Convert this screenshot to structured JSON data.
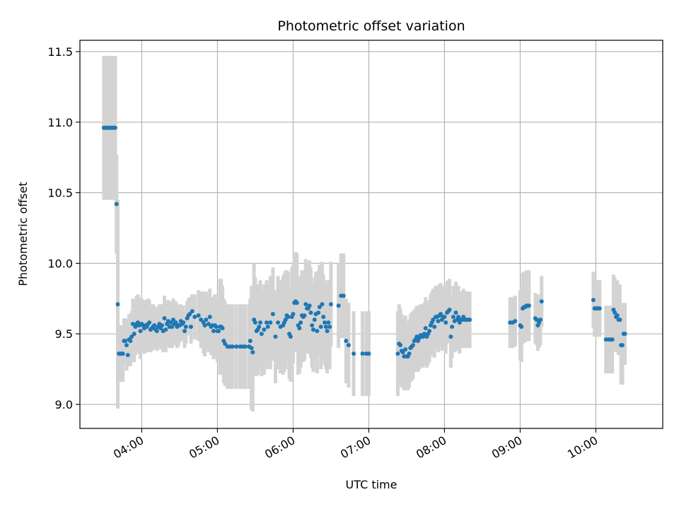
{
  "chart_data": {
    "type": "scatter",
    "title": "Photometric offset variation",
    "xlabel": "UTC time",
    "ylabel": "Photometric offset",
    "x_ticks": [
      "04:00",
      "05:00",
      "06:00",
      "07:00",
      "08:00",
      "09:00",
      "10:00"
    ],
    "y_ticks": [
      "9.0",
      "9.5",
      "10.0",
      "10.5",
      "11.0",
      "11.5"
    ],
    "y_tick_values": [
      9.0,
      9.5,
      10.0,
      10.5,
      11.0,
      11.5
    ],
    "xlim": [
      "03:11",
      "10:53"
    ],
    "ylim": [
      8.83,
      11.58
    ],
    "grid": true,
    "colors": {
      "point": "#1f77b4",
      "errorbar": "#d3d3d3",
      "grid": "#b0b0b0"
    },
    "series": [
      {
        "x": [
          "03:30",
          "03:31",
          "03:32",
          "03:33",
          "03:34",
          "03:35",
          "03:36",
          "03:37",
          "03:38",
          "03:39",
          "03:40",
          "03:41",
          "03:42",
          "03:43",
          "03:44",
          "03:45",
          "03:46",
          "03:47",
          "03:48",
          "03:49",
          "03:50",
          "03:51",
          "03:52",
          "03:53",
          "03:54",
          "03:55",
          "03:56",
          "03:57",
          "03:58",
          "03:59",
          "04:00",
          "04:01",
          "04:02",
          "04:03",
          "04:04",
          "04:05",
          "04:06",
          "04:07",
          "04:08",
          "04:09",
          "04:10",
          "04:11",
          "04:12",
          "04:13",
          "04:14",
          "04:15",
          "04:16",
          "04:17",
          "04:18",
          "04:19",
          "04:20",
          "04:21",
          "04:22",
          "04:23",
          "04:24",
          "04:25",
          "04:26",
          "04:27",
          "04:28",
          "04:29",
          "04:30",
          "04:31",
          "04:32",
          "04:33",
          "04:34",
          "04:35",
          "04:36",
          "04:37",
          "04:38",
          "04:39",
          "04:40",
          "04:42",
          "04:45",
          "04:47",
          "04:49",
          "04:50",
          "04:51",
          "04:53",
          "04:54",
          "04:55",
          "04:56",
          "04:57",
          "04:58",
          "04:59",
          "05:00",
          "05:01",
          "05:02",
          "05:03",
          "05:04",
          "05:05",
          "05:06",
          "05:08",
          "05:10",
          "05:12",
          "05:15",
          "05:18",
          "05:20",
          "05:22",
          "05:25",
          "05:26",
          "05:27",
          "05:28",
          "05:29",
          "05:30",
          "05:31",
          "05:32",
          "05:33",
          "05:34",
          "05:35",
          "05:37",
          "05:39",
          "05:40",
          "05:42",
          "05:44",
          "05:46",
          "05:48",
          "05:50",
          "05:52",
          "05:53",
          "05:54",
          "05:55",
          "05:56",
          "05:57",
          "05:58",
          "05:59",
          "06:00",
          "06:01",
          "06:02",
          "06:03",
          "06:04",
          "06:05",
          "06:06",
          "06:07",
          "06:08",
          "06:09",
          "06:10",
          "06:11",
          "06:12",
          "06:13",
          "06:14",
          "06:15",
          "06:16",
          "06:17",
          "06:18",
          "06:19",
          "06:20",
          "06:21",
          "06:22",
          "06:23",
          "06:24",
          "06:25",
          "06:26",
          "06:27",
          "06:28",
          "06:29",
          "06:30",
          "06:36",
          "06:38",
          "06:40",
          "06:42",
          "06:44",
          "06:48",
          "06:55",
          "06:58",
          "07:00",
          "07:23",
          "07:24",
          "07:25",
          "07:26",
          "07:27",
          "07:28",
          "07:29",
          "07:30",
          "07:31",
          "07:32",
          "07:33",
          "07:34",
          "07:35",
          "07:36",
          "07:37",
          "07:38",
          "07:39",
          "07:40",
          "07:41",
          "07:42",
          "07:43",
          "07:44",
          "07:45",
          "07:46",
          "07:47",
          "07:48",
          "07:49",
          "07:50",
          "07:51",
          "07:52",
          "07:53",
          "07:54",
          "07:55",
          "07:56",
          "07:57",
          "07:58",
          "07:59",
          "08:00",
          "08:01",
          "08:02",
          "08:03",
          "08:04",
          "08:05",
          "08:06",
          "08:07",
          "08:08",
          "08:09",
          "08:10",
          "08:11",
          "08:12",
          "08:13",
          "08:14",
          "08:15",
          "08:16",
          "08:17",
          "08:18",
          "08:19",
          "08:20",
          "08:52",
          "08:54",
          "08:56",
          "09:00",
          "09:01",
          "09:02",
          "09:03",
          "09:04",
          "09:05",
          "09:06",
          "09:07",
          "09:12",
          "09:13",
          "09:14",
          "09:15",
          "09:16",
          "09:17",
          "09:58",
          "09:59",
          "10:00",
          "10:01",
          "10:02",
          "10:03",
          "10:08",
          "10:10",
          "10:12",
          "10:13",
          "10:14",
          "10:15",
          "10:16",
          "10:17",
          "10:18",
          "10:19",
          "10:20",
          "10:21",
          "10:22",
          "10:23"
        ],
        "y": [
          10.96,
          10.96,
          10.96,
          10.96,
          10.96,
          10.96,
          10.96,
          10.96,
          10.96,
          10.96,
          10.42,
          9.71,
          9.36,
          9.36,
          9.36,
          9.36,
          9.45,
          9.45,
          9.42,
          9.35,
          9.46,
          9.45,
          9.48,
          9.57,
          9.5,
          9.55,
          9.57,
          9.58,
          9.56,
          9.52,
          9.57,
          9.56,
          9.54,
          9.56,
          9.55,
          9.57,
          9.58,
          9.53,
          9.54,
          9.55,
          9.56,
          9.53,
          9.52,
          9.55,
          9.57,
          9.54,
          9.56,
          9.52,
          9.61,
          9.53,
          9.57,
          9.59,
          9.55,
          9.58,
          9.55,
          9.6,
          9.57,
          9.58,
          9.55,
          9.56,
          9.56,
          9.59,
          9.57,
          9.58,
          9.52,
          9.55,
          9.61,
          9.63,
          9.64,
          9.55,
          9.66,
          9.62,
          9.63,
          9.6,
          9.58,
          9.56,
          9.6,
          9.57,
          9.62,
          9.55,
          9.56,
          9.52,
          9.56,
          9.55,
          9.52,
          9.52,
          9.55,
          9.55,
          9.54,
          9.45,
          9.43,
          9.41,
          9.41,
          9.41,
          9.41,
          9.41,
          9.41,
          9.41,
          9.41,
          9.45,
          9.4,
          9.37,
          9.6,
          9.58,
          9.52,
          9.53,
          9.55,
          9.58,
          9.5,
          9.53,
          9.58,
          9.55,
          9.58,
          9.64,
          9.48,
          9.58,
          9.55,
          9.56,
          9.58,
          9.6,
          9.63,
          9.62,
          9.5,
          9.48,
          9.62,
          9.64,
          9.72,
          9.73,
          9.72,
          9.56,
          9.54,
          9.58,
          9.63,
          9.62,
          9.63,
          9.71,
          9.68,
          9.68,
          9.7,
          9.65,
          9.56,
          9.53,
          9.6,
          9.64,
          9.52,
          9.65,
          9.69,
          9.55,
          9.71,
          9.62,
          9.58,
          9.55,
          9.52,
          9.58,
          9.55,
          9.71,
          9.7,
          9.77,
          9.77,
          9.45,
          9.42,
          9.36,
          9.36,
          9.36,
          9.36,
          9.36,
          9.43,
          9.42,
          9.38,
          9.37,
          9.34,
          9.39,
          9.34,
          9.34,
          9.36,
          9.4,
          9.41,
          9.42,
          9.45,
          9.46,
          9.48,
          9.45,
          9.47,
          9.49,
          9.49,
          9.48,
          9.5,
          9.54,
          9.48,
          9.5,
          9.52,
          9.56,
          9.58,
          9.6,
          9.55,
          9.62,
          9.62,
          9.59,
          9.63,
          9.64,
          9.6,
          9.62,
          9.62,
          9.58,
          9.65,
          9.66,
          9.67,
          9.48,
          9.55,
          9.62,
          9.59,
          9.65,
          9.6,
          9.62,
          9.58,
          9.6,
          9.6,
          9.62,
          9.6,
          9.6,
          9.6,
          9.6,
          9.6,
          9.58,
          9.58,
          9.59,
          9.56,
          9.55,
          9.68,
          9.69,
          9.69,
          9.7,
          9.7,
          9.7,
          9.61,
          9.6,
          9.56,
          9.58,
          9.6,
          9.73,
          9.74,
          9.68,
          9.68,
          9.68,
          9.68,
          9.68,
          9.46,
          9.46,
          9.46,
          9.46,
          9.67,
          9.65,
          9.62,
          9.63,
          9.6,
          9.6,
          9.42,
          9.42,
          9.5,
          9.5
        ],
        "err": [
          0.51,
          0.51,
          0.51,
          0.51,
          0.51,
          0.51,
          0.51,
          0.51,
          0.51,
          0.51,
          0.35,
          0.74,
          0.2,
          0.2,
          0.2,
          0.2,
          0.16,
          0.16,
          0.18,
          0.08,
          0.18,
          0.18,
          0.18,
          0.18,
          0.2,
          0.2,
          0.2,
          0.2,
          0.2,
          0.2,
          0.18,
          0.18,
          0.18,
          0.18,
          0.18,
          0.18,
          0.16,
          0.16,
          0.16,
          0.16,
          0.14,
          0.14,
          0.14,
          0.14,
          0.14,
          0.15,
          0.15,
          0.15,
          0.16,
          0.16,
          0.15,
          0.15,
          0.15,
          0.15,
          0.15,
          0.15,
          0.15,
          0.15,
          0.15,
          0.15,
          0.12,
          0.12,
          0.12,
          0.12,
          0.12,
          0.12,
          0.12,
          0.12,
          0.12,
          0.12,
          0.12,
          0.16,
          0.18,
          0.2,
          0.22,
          0.22,
          0.2,
          0.2,
          0.2,
          0.2,
          0.2,
          0.2,
          0.22,
          0.22,
          0.22,
          0.22,
          0.34,
          0.34,
          0.3,
          0.3,
          0.3,
          0.3,
          0.3,
          0.3,
          0.3,
          0.3,
          0.3,
          0.3,
          0.3,
          0.3,
          0.44,
          0.42,
          0.4,
          0.32,
          0.32,
          0.32,
          0.28,
          0.3,
          0.3,
          0.32,
          0.3,
          0.3,
          0.33,
          0.33,
          0.33,
          0.33,
          0.33,
          0.35,
          0.35,
          0.35,
          0.32,
          0.32,
          0.32,
          0.32,
          0.35,
          0.35,
          0.35,
          0.35,
          0.35,
          0.35,
          0.32,
          0.32,
          0.32,
          0.32,
          0.32,
          0.32,
          0.32,
          0.32,
          0.32,
          0.32,
          0.3,
          0.3,
          0.3,
          0.3,
          0.3,
          0.3,
          0.3,
          0.3,
          0.3,
          0.3,
          0.3,
          0.3,
          0.3,
          0.3,
          0.3,
          0.3,
          0.3,
          0.3,
          0.3,
          0.3,
          0.3,
          0.3,
          0.3,
          0.3,
          0.3,
          0.3,
          0.28,
          0.26,
          0.26,
          0.24,
          0.24,
          0.24,
          0.24,
          0.24,
          0.24,
          0.24,
          0.24,
          0.24,
          0.22,
          0.22,
          0.22,
          0.22,
          0.22,
          0.22,
          0.22,
          0.22,
          0.22,
          0.22,
          0.22,
          0.22,
          0.22,
          0.22,
          0.22,
          0.22,
          0.22,
          0.22,
          0.22,
          0.22,
          0.22,
          0.22,
          0.22,
          0.22,
          0.22,
          0.22,
          0.22,
          0.22,
          0.22,
          0.22,
          0.22,
          0.22,
          0.22,
          0.22,
          0.22,
          0.22,
          0.22,
          0.2,
          0.2,
          0.2,
          0.2,
          0.2,
          0.2,
          0.2,
          0.2,
          0.18,
          0.18,
          0.18,
          0.25,
          0.25,
          0.25,
          0.25,
          0.25,
          0.25,
          0.25,
          0.25,
          0.18,
          0.18,
          0.18,
          0.18,
          0.18,
          0.18,
          0.2,
          0.2,
          0.2,
          0.2,
          0.2,
          0.2,
          0.24,
          0.24,
          0.24,
          0.24,
          0.25,
          0.25,
          0.25,
          0.25,
          0.25,
          0.25,
          0.28,
          0.28,
          0.22,
          0.22
        ]
      }
    ]
  }
}
